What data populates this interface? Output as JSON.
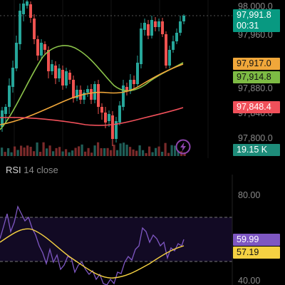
{
  "main_chart": {
    "price_scale": {
      "labels": [
        "98,000.0",
        "97,960.0",
        "97,880.0",
        "97,840.0",
        "97,800.0"
      ]
    },
    "price_labels": {
      "last_price": "97,991.8",
      "countdown": "00:31",
      "ma_orange": "97,917.0",
      "ma_green": "97,914.8",
      "ma_red": "97,848.4",
      "volume": "19.15 K"
    },
    "colors": {
      "up": "#26a69a",
      "down": "#ef5350",
      "ma_green": "#8bc34a",
      "ma_orange": "#f0a73a",
      "ma_red": "#f0505a",
      "last_price": "#089981",
      "volume_label": "#1e8c7a"
    },
    "icons": [
      "lightning-icon"
    ]
  },
  "rsi_pane": {
    "title": "RSI",
    "subtitle": "14 close",
    "scale_labels": [
      "80.00",
      "40.00"
    ],
    "values": {
      "rsi": "59.99",
      "rsi_ma": "57.19"
    },
    "colors": {
      "rsi": "#7e57c2",
      "rsi_ma": "#f5d142",
      "band": "#2a1a4a"
    }
  }
}
